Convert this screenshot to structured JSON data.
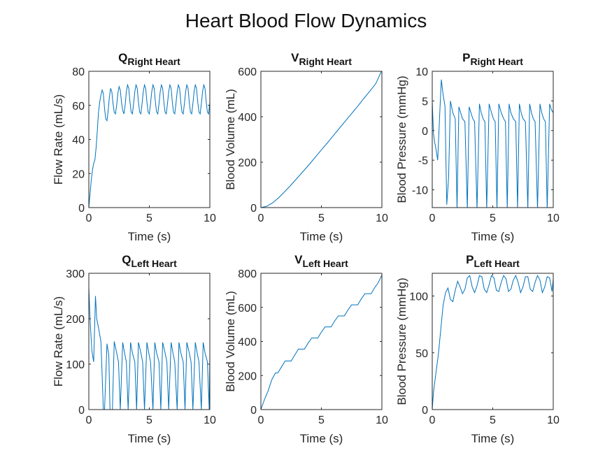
{
  "figure": {
    "title": "Heart Blood Flow Dynamics"
  },
  "colors": {
    "line": "#0072BD",
    "axis": "#262626",
    "background": "#ffffff"
  },
  "chart_data": [
    {
      "type": "line",
      "title": "Q",
      "title_sub": "Right Heart",
      "xlabel": "Time (s)",
      "ylabel": "Flow Rate (mL/s)",
      "xlim": [
        0,
        10
      ],
      "ylim": [
        0,
        80
      ],
      "xticks": [
        "0",
        "5",
        "10"
      ],
      "yticks": [
        "0",
        "20",
        "40",
        "60",
        "80"
      ],
      "grid": false,
      "series": [
        {
          "x": [
            0,
            0.1,
            0.2,
            0.3,
            0.4,
            0.5,
            0.6,
            0.7,
            0.8,
            0.9,
            1.0,
            1.1,
            1.2,
            1.3,
            1.4,
            1.5,
            1.6,
            1.7,
            1.8,
            1.9,
            2.0,
            2.1,
            2.2,
            2.3,
            2.4,
            2.5,
            2.6,
            2.7,
            2.8,
            2.9,
            3.0,
            3.1,
            3.2,
            3.3,
            3.4,
            3.5,
            3.6,
            3.7,
            3.8,
            3.9,
            4.0,
            4.1,
            4.2,
            4.3,
            4.4,
            4.5,
            4.6,
            4.7,
            4.8,
            4.9,
            5.0,
            5.1,
            5.2,
            5.3,
            5.4,
            5.5,
            5.6,
            5.7,
            5.8,
            5.9,
            6.0,
            6.1,
            6.2,
            6.3,
            6.4,
            6.5,
            6.6,
            6.7,
            6.8,
            6.9,
            7.0,
            7.1,
            7.2,
            7.3,
            7.4,
            7.5,
            7.6,
            7.7,
            7.8,
            7.9,
            8.0,
            8.1,
            8.2,
            8.3,
            8.4,
            8.5,
            8.6,
            8.7,
            8.8,
            8.9,
            9.0,
            9.1,
            9.2,
            9.3,
            9.4,
            9.5,
            9.6,
            9.7,
            9.8,
            9.9,
            10.0
          ],
          "y": [
            0,
            8,
            16,
            22,
            26,
            28,
            35,
            45,
            56,
            62,
            66,
            69,
            67,
            58,
            52,
            51,
            57,
            65,
            70,
            68,
            61,
            56,
            55,
            60,
            67,
            71,
            69,
            62,
            57,
            55,
            60,
            68,
            72,
            70,
            62,
            56,
            55,
            61,
            68,
            72,
            70,
            62,
            56,
            55,
            61,
            68,
            72,
            70,
            62,
            56,
            55,
            61,
            68,
            72,
            70,
            62,
            56,
            55,
            61,
            68,
            72,
            70,
            62,
            56,
            55,
            61,
            68,
            72,
            70,
            62,
            56,
            55,
            61,
            68,
            72,
            70,
            62,
            56,
            55,
            61,
            68,
            72,
            70,
            62,
            56,
            55,
            61,
            68,
            72,
            70,
            62,
            56,
            55,
            61,
            68,
            72,
            70,
            62,
            56,
            55,
            62
          ]
        }
      ]
    },
    {
      "type": "line",
      "title": "V",
      "title_sub": "Right Heart",
      "xlabel": "Time (s)",
      "ylabel": "Blood Volume (mL)",
      "xlim": [
        0,
        10
      ],
      "ylim": [
        0,
        600
      ],
      "xticks": [
        "0",
        "5",
        "10"
      ],
      "yticks": [
        "0",
        "200",
        "400",
        "600"
      ],
      "grid": false,
      "series": [
        {
          "x": [
            0,
            0.5,
            1,
            1.5,
            2,
            2.5,
            3,
            3.5,
            4,
            4.5,
            5,
            5.5,
            6,
            6.5,
            7,
            7.5,
            8,
            8.5,
            9,
            9.5,
            10
          ],
          "y": [
            0,
            6,
            22,
            45,
            72,
            100,
            130,
            160,
            190,
            222,
            254,
            285,
            318,
            350,
            382,
            414,
            446,
            480,
            512,
            546,
            605
          ]
        }
      ]
    },
    {
      "type": "line",
      "title": "P",
      "title_sub": "Right Heart",
      "xlabel": "Time (s)",
      "ylabel": "Blood Pressure (mmHg)",
      "xlim": [
        0,
        10
      ],
      "ylim": [
        -13,
        10
      ],
      "xticks": [
        "0",
        "5",
        "10"
      ],
      "yticks": [
        "10",
        "5",
        "0",
        "-5",
        "-10"
      ],
      "grid": false,
      "series": [
        {
          "x": [
            0,
            0.1,
            0.2,
            0.3,
            0.45,
            0.6,
            0.75,
            0.9,
            1.05,
            1.2,
            1.35,
            1.5,
            1.7,
            1.9,
            2.05,
            2.2,
            2.35,
            2.5,
            2.7,
            2.9,
            3.05,
            3.2,
            3.35,
            3.5,
            3.7,
            3.9,
            4.05,
            4.2,
            4.35,
            4.5,
            4.7,
            4.9,
            5.05,
            5.2,
            5.35,
            5.5,
            5.7,
            5.9,
            6.05,
            6.2,
            6.35,
            6.5,
            6.7,
            6.9,
            7.05,
            7.2,
            7.35,
            7.5,
            7.7,
            7.9,
            8.05,
            8.2,
            8.35,
            8.5,
            8.7,
            8.9,
            9.05,
            9.2,
            9.35,
            9.5,
            9.7,
            9.85,
            10.0
          ],
          "y": [
            5,
            -0.5,
            -2,
            -3,
            -5,
            2,
            8.6,
            6,
            4.2,
            -12.5,
            -8,
            5,
            3,
            2,
            -13.2,
            4,
            3,
            2,
            1.5,
            -13.2,
            4,
            3,
            2,
            1.5,
            -13.2,
            4.5,
            3,
            2,
            1.5,
            -13.2,
            4.5,
            3,
            2,
            1.5,
            -13.2,
            4.5,
            3,
            2,
            1.5,
            -13.2,
            4.5,
            3,
            2,
            1.5,
            -13.2,
            4.5,
            3,
            2,
            1.5,
            -13.2,
            4.5,
            3,
            2,
            1.5,
            -13.2,
            4.5,
            3,
            2,
            1.5,
            -13.2,
            4.5,
            3.5,
            3
          ]
        }
      ]
    },
    {
      "type": "line",
      "title": "Q",
      "title_sub": "Left Heart",
      "xlabel": "Time (s)",
      "ylabel": "Flow Rate (mL/s)",
      "xlim": [
        0,
        10
      ],
      "ylim": [
        0,
        300
      ],
      "xticks": [
        "0",
        "5",
        "10"
      ],
      "yticks": [
        "0",
        "100",
        "200",
        "300"
      ],
      "grid": false,
      "series": [
        {
          "x": [
            0,
            0.1,
            0.25,
            0.4,
            0.55,
            0.65,
            0.8,
            1.0,
            1.2,
            1.3,
            1.5,
            1.65,
            1.75,
            1.95,
            2.1,
            2.3,
            2.45,
            2.6,
            2.8,
            2.95,
            3.1,
            3.25,
            3.45,
            3.6,
            3.8,
            3.95,
            4.1,
            4.3,
            4.45,
            4.6,
            4.8,
            4.95,
            5.1,
            5.3,
            5.45,
            5.6,
            5.8,
            5.95,
            6.1,
            6.3,
            6.45,
            6.6,
            6.8,
            6.95,
            7.1,
            7.3,
            7.45,
            7.6,
            7.8,
            7.95,
            8.1,
            8.3,
            8.45,
            8.6,
            8.8,
            8.95,
            9.1,
            9.3,
            9.45,
            9.6,
            9.8,
            9.95,
            10.0
          ],
          "y": [
            270,
            200,
            130,
            105,
            250,
            200,
            180,
            150,
            0,
            0,
            145,
            120,
            0,
            0,
            150,
            125,
            105,
            0,
            148,
            125,
            105,
            0,
            148,
            125,
            105,
            0,
            148,
            125,
            105,
            0,
            148,
            125,
            105,
            0,
            148,
            125,
            105,
            0,
            148,
            125,
            105,
            0,
            148,
            125,
            105,
            0,
            148,
            125,
            105,
            0,
            148,
            125,
            105,
            0,
            148,
            125,
            105,
            0,
            148,
            125,
            105,
            0,
            120
          ]
        }
      ]
    },
    {
      "type": "line",
      "title": "V",
      "title_sub": "Left Heart",
      "xlabel": "Time (s)",
      "ylabel": "Blood Volume (mL)",
      "xlim": [
        0,
        10
      ],
      "ylim": [
        0,
        800
      ],
      "xticks": [
        "0",
        "5",
        "10"
      ],
      "yticks": [
        "0",
        "200",
        "400",
        "600",
        "800"
      ],
      "grid": false,
      "series": [
        {
          "x": [
            0,
            0.3,
            0.6,
            0.9,
            1.2,
            1.4,
            1.7,
            2.0,
            2.3,
            2.5,
            2.8,
            3.1,
            3.4,
            3.6,
            3.9,
            4.2,
            4.5,
            4.7,
            5.0,
            5.3,
            5.6,
            5.8,
            6.1,
            6.4,
            6.7,
            6.9,
            7.2,
            7.5,
            7.8,
            8.0,
            8.3,
            8.6,
            8.9,
            9.1,
            9.4,
            9.7,
            10.0
          ],
          "y": [
            0,
            60,
            110,
            175,
            215,
            215,
            250,
            285,
            285,
            285,
            320,
            355,
            355,
            355,
            390,
            420,
            420,
            420,
            455,
            485,
            485,
            485,
            520,
            550,
            550,
            550,
            585,
            615,
            615,
            615,
            650,
            680,
            680,
            680,
            715,
            745,
            790
          ]
        }
      ]
    },
    {
      "type": "line",
      "title": "P",
      "title_sub": "Left Heart",
      "xlabel": "Time (s)",
      "ylabel": "Blood Pressure (mmHg)",
      "xlim": [
        0,
        10
      ],
      "ylim": [
        0,
        120
      ],
      "xticks": [
        "0",
        "5",
        "10"
      ],
      "yticks": [
        "0",
        "50",
        "100"
      ],
      "grid": false,
      "series": [
        {
          "x": [
            0,
            0.1,
            0.3,
            0.5,
            0.7,
            0.9,
            1.1,
            1.3,
            1.5,
            1.7,
            1.9,
            2.1,
            2.3,
            2.5,
            2.7,
            2.9,
            3.1,
            3.3,
            3.5,
            3.7,
            3.9,
            4.1,
            4.3,
            4.5,
            4.7,
            4.9,
            5.1,
            5.3,
            5.5,
            5.7,
            5.9,
            6.1,
            6.3,
            6.5,
            6.7,
            6.9,
            7.1,
            7.3,
            7.5,
            7.7,
            7.9,
            8.1,
            8.3,
            8.5,
            8.7,
            8.9,
            9.1,
            9.3,
            9.5,
            9.7,
            9.9,
            10.0
          ],
          "y": [
            0,
            15,
            32,
            48,
            70,
            92,
            103,
            107,
            97,
            95,
            105,
            113,
            108,
            102,
            106,
            116,
            118,
            108,
            103,
            109,
            118,
            117,
            106,
            103,
            110,
            118,
            116,
            105,
            104,
            112,
            118,
            115,
            104,
            106,
            114,
            118,
            112,
            103,
            108,
            117,
            117,
            106,
            104,
            112,
            118,
            114,
            103,
            108,
            117,
            116,
            104,
            115
          ]
        }
      ]
    }
  ]
}
